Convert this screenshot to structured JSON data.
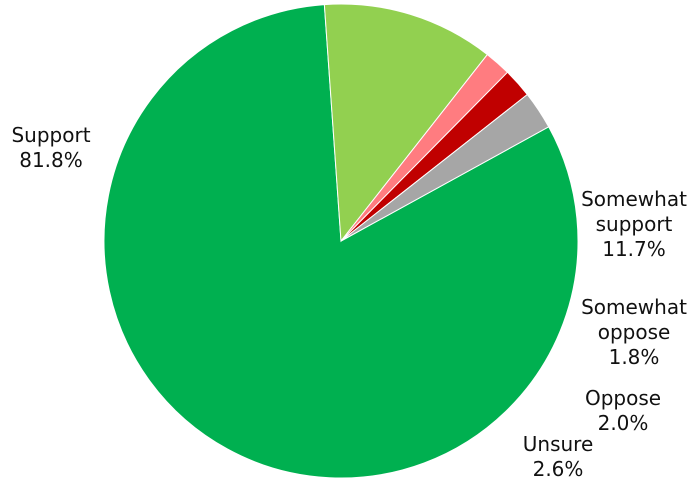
{
  "chart_data": {
    "type": "pie",
    "title": "",
    "slices": [
      {
        "label": [
          "Support"
        ],
        "value": 81.8,
        "value_label": "81.8%",
        "color": "#00B050"
      },
      {
        "label": [
          "Somewhat",
          "support"
        ],
        "value": 11.7,
        "value_label": "11.7%",
        "color": "#92D050"
      },
      {
        "label": [
          "Somewhat",
          "oppose"
        ],
        "value": 1.8,
        "value_label": "1.8%",
        "color": "#FF7C80"
      },
      {
        "label": [
          "Oppose"
        ],
        "value": 2.0,
        "value_label": "2.0%",
        "color": "#C00000"
      },
      {
        "label": [
          "Unsure"
        ],
        "value": 2.6,
        "value_label": "2.6%",
        "color": "#A6A6A6"
      }
    ]
  }
}
